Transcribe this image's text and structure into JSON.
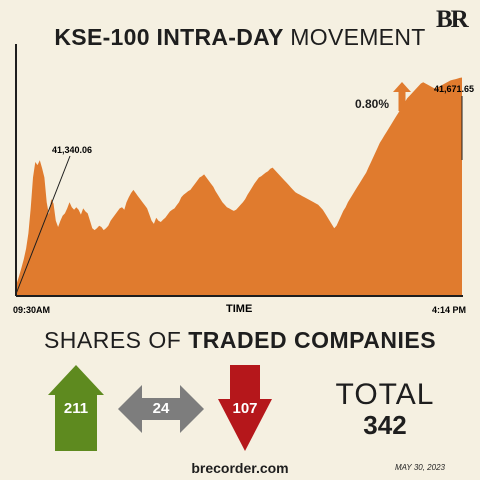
{
  "header": {
    "title_bold": "KSE-100 INTRA-DAY",
    "title_light": "MOVEMENT",
    "logo": "BR"
  },
  "chart_data": {
    "type": "area",
    "title": "KSE-100 INTRA-DAY MOVEMENT",
    "xlabel": "TIME",
    "x_start_label": "09:30AM",
    "x_end_label": "4:14 PM",
    "open_value_label": "41,340.06",
    "close_value_label": "41,671.65",
    "change_label": "0.80%",
    "open_value": 41340.06,
    "close_value": 41671.65,
    "color": "#e07b2e",
    "series": [
      {
        "values": [
          41340.06,
          41352,
          41365,
          41378,
          41395,
          41420,
          41460,
          41510,
          41535,
          41530,
          41538,
          41525,
          41510,
          41470,
          41450,
          41475,
          41468,
          41440,
          41430,
          41440,
          41448,
          41452,
          41460,
          41470,
          41462,
          41458,
          41462,
          41458,
          41450,
          41460,
          41455,
          41452,
          41440,
          41428,
          41425,
          41428,
          41432,
          41430,
          41425,
          41428,
          41432,
          41440,
          41445,
          41450,
          41455,
          41460,
          41462,
          41458,
          41470,
          41478,
          41485,
          41490,
          41485,
          41480,
          41475,
          41470,
          41465,
          41460,
          41450,
          41440,
          41435,
          41445,
          41440,
          41438,
          41442,
          41445,
          41450,
          41455,
          41458,
          41460,
          41465,
          41470,
          41478,
          41482,
          41485,
          41488,
          41490,
          41495,
          41500,
          41505,
          41510,
          41512,
          41515,
          41510,
          41505,
          41500,
          41495,
          41488,
          41482,
          41476,
          41470,
          41466,
          41462,
          41460,
          41458,
          41456,
          41458,
          41462,
          41466,
          41470,
          41475,
          41482,
          41488,
          41494,
          41500,
          41505,
          41510,
          41512,
          41515,
          41518,
          41520,
          41524,
          41526,
          41522,
          41518,
          41514,
          41510,
          41506,
          41502,
          41498,
          41494,
          41490,
          41486,
          41484,
          41482,
          41480,
          41478,
          41476,
          41474,
          41472,
          41470,
          41468,
          41466,
          41462,
          41458,
          41452,
          41446,
          41440,
          41434,
          41428,
          41432,
          41440,
          41448,
          41456,
          41462,
          41470,
          41476,
          41482,
          41488,
          41494,
          41500,
          41506,
          41512,
          41518,
          41526,
          41534,
          41542,
          41550,
          41558,
          41566,
          41572,
          41578,
          41584,
          41590,
          41596,
          41602,
          41608,
          41614,
          41620,
          41626,
          41632,
          41638,
          41642,
          41646,
          41650,
          41654,
          41658,
          41662,
          41664,
          41662,
          41660,
          41658,
          41656,
          41654,
          41655,
          41657,
          41659,
          41661,
          41663,
          41665,
          41667,
          41668,
          41669,
          41670,
          41671,
          41671.65
        ]
      }
    ],
    "ylim": [
      41320,
      41700
    ]
  },
  "shares": {
    "title_light": "SHARES OF",
    "title_bold": "TRADED COMPANIES",
    "advanced": "211",
    "unchanged": "24",
    "declined": "107",
    "colors": {
      "up": "#5e8a1f",
      "flat": "#7d7d7d",
      "down": "#b5171b"
    },
    "total_label": "TOTAL",
    "total_value": "342"
  },
  "footer": {
    "site": "brecorder.com",
    "date": "MAY 30, 2023"
  }
}
